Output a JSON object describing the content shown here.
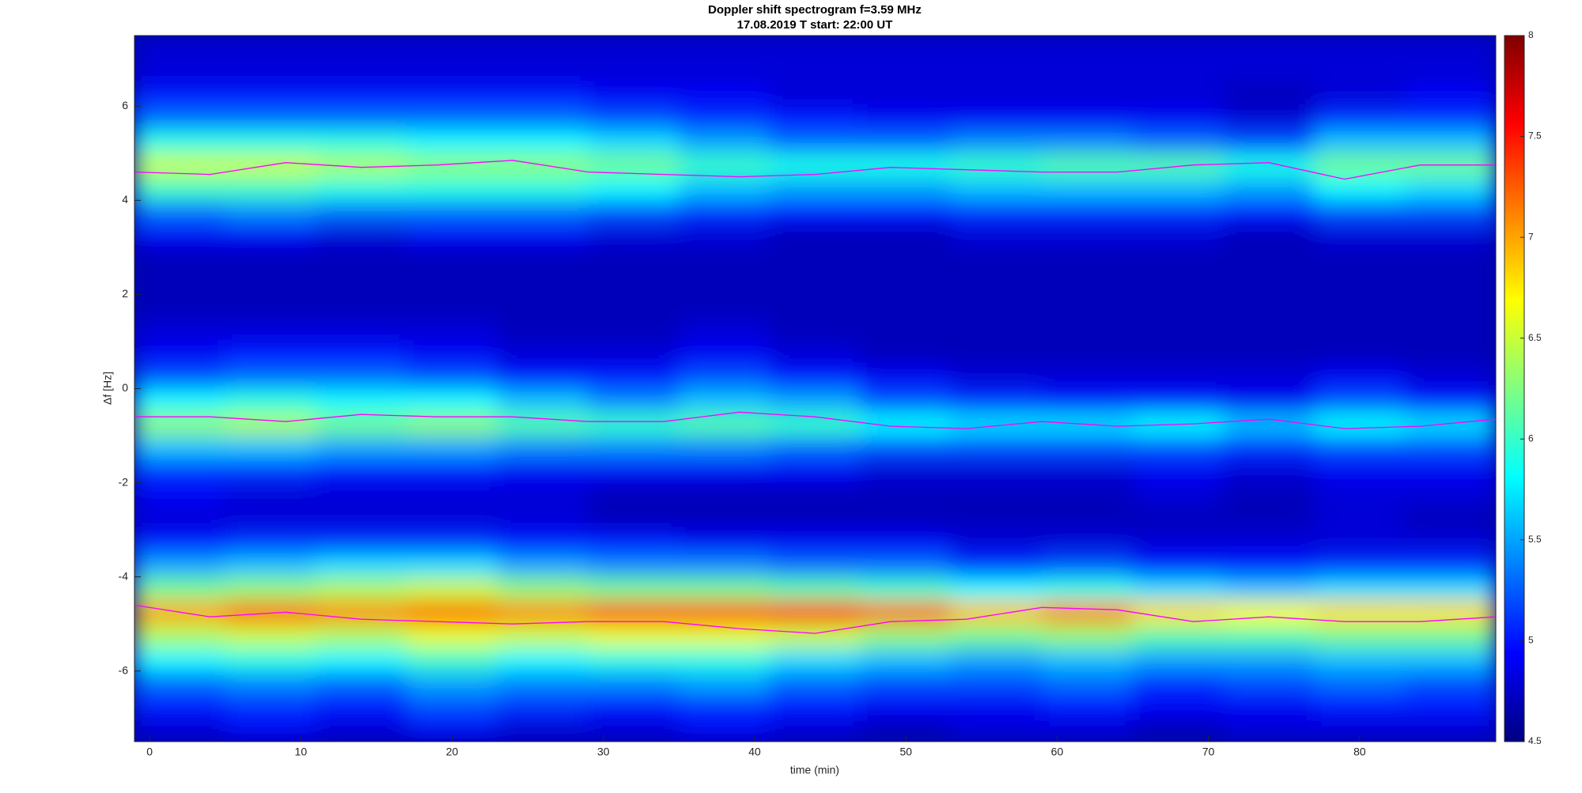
{
  "chart_data": {
    "type": "heatmap",
    "title": "Doppler shift spectrogram f=3.59 MHz",
    "subtitle": "17.08.2019   T start: 22:00 UT",
    "xlabel": "time (min)",
    "ylabel": "Δf [Hz]",
    "xlim": [
      -1,
      89
    ],
    "xticks": [
      0,
      10,
      20,
      30,
      40,
      50,
      60,
      70,
      80
    ],
    "ylim": [
      -7.5,
      7.5
    ],
    "yticks": [
      -6,
      -4,
      -2,
      0,
      2,
      4,
      6
    ],
    "clim": [
      4.5,
      8
    ],
    "cticks": [
      4.5,
      5,
      5.5,
      6,
      6.5,
      7,
      7.5,
      8
    ],
    "colormap": "jet",
    "x": [
      2,
      8,
      14,
      20,
      26,
      32,
      38,
      44,
      50,
      56,
      62,
      68,
      74,
      80,
      86
    ],
    "y": [
      -7.25,
      -6.75,
      -6.25,
      -5.75,
      -5.25,
      -4.75,
      -4.25,
      -3.75,
      -3.25,
      -2.75,
      -2.25,
      -1.75,
      -1.25,
      -0.75,
      -0.25,
      0.25,
      0.75,
      1.25,
      1.75,
      2.25,
      2.75,
      3.25,
      3.75,
      4.25,
      4.75,
      5.25,
      5.75,
      6.25,
      6.75,
      7.25
    ],
    "z": [
      [
        4.8,
        4.9,
        4.8,
        4.9,
        4.8,
        4.8,
        4.9,
        4.8,
        4.7,
        4.8,
        4.8,
        4.7,
        4.8,
        4.8,
        4.8
      ],
      [
        5.0,
        5.1,
        5.0,
        5.2,
        5.1,
        5.0,
        5.1,
        5.0,
        4.9,
        4.9,
        5.0,
        4.9,
        4.9,
        5.0,
        5.0
      ],
      [
        5.3,
        5.4,
        5.3,
        5.5,
        5.4,
        5.4,
        5.5,
        5.3,
        5.2,
        5.2,
        5.3,
        5.1,
        5.2,
        5.3,
        5.2
      ],
      [
        5.8,
        5.9,
        5.8,
        6.0,
        5.8,
        5.9,
        5.9,
        5.7,
        5.6,
        5.5,
        5.6,
        5.5,
        5.5,
        5.6,
        5.6
      ],
      [
        6.4,
        6.5,
        6.4,
        6.6,
        6.5,
        6.6,
        6.6,
        6.5,
        6.3,
        6.2,
        6.3,
        6.1,
        6.1,
        6.2,
        6.2
      ],
      [
        7.0,
        7.2,
        7.1,
        7.2,
        7.1,
        7.3,
        7.3,
        7.4,
        7.2,
        6.9,
        7.1,
        6.8,
        6.7,
        6.8,
        6.8
      ],
      [
        6.2,
        6.3,
        6.4,
        6.5,
        6.3,
        6.2,
        6.2,
        6.1,
        6.0,
        5.8,
        5.9,
        5.7,
        5.6,
        5.7,
        5.7
      ],
      [
        5.5,
        5.6,
        5.7,
        5.7,
        5.5,
        5.4,
        5.4,
        5.3,
        5.3,
        5.1,
        5.2,
        5.0,
        5.0,
        5.1,
        5.1
      ],
      [
        5.0,
        5.1,
        5.1,
        5.1,
        5.0,
        5.0,
        4.9,
        4.9,
        4.9,
        4.8,
        4.8,
        4.8,
        4.8,
        4.8,
        4.8
      ],
      [
        4.8,
        4.8,
        4.8,
        4.8,
        4.8,
        4.7,
        4.7,
        4.7,
        4.7,
        4.7,
        4.7,
        4.7,
        4.7,
        4.8,
        4.7
      ],
      [
        4.9,
        4.8,
        4.8,
        4.8,
        4.8,
        4.7,
        4.7,
        4.7,
        4.7,
        4.7,
        4.7,
        4.8,
        4.7,
        4.8,
        4.8
      ],
      [
        5.1,
        5.1,
        5.0,
        5.0,
        4.9,
        4.9,
        4.9,
        4.9,
        4.8,
        4.8,
        4.8,
        4.9,
        4.8,
        4.9,
        4.9
      ],
      [
        5.6,
        5.6,
        5.5,
        5.5,
        5.4,
        5.4,
        5.4,
        5.3,
        5.2,
        5.2,
        5.2,
        5.2,
        5.1,
        5.2,
        5.2
      ],
      [
        6.3,
        6.4,
        6.2,
        6.3,
        6.1,
        6.0,
        6.1,
        6.0,
        5.8,
        5.7,
        5.7,
        5.8,
        5.6,
        5.8,
        5.7
      ],
      [
        5.8,
        5.9,
        5.8,
        5.8,
        5.6,
        5.4,
        5.6,
        5.5,
        5.2,
        5.1,
        5.0,
        5.0,
        4.9,
        5.2,
        5.0
      ],
      [
        5.2,
        5.3,
        5.3,
        5.2,
        5.0,
        5.0,
        5.2,
        5.0,
        4.9,
        4.8,
        4.8,
        4.8,
        4.8,
        4.9,
        4.8
      ],
      [
        4.9,
        5.0,
        5.0,
        4.9,
        4.8,
        4.8,
        4.9,
        4.8,
        4.7,
        4.7,
        4.7,
        4.7,
        4.7,
        4.7,
        4.7
      ],
      [
        4.8,
        4.8,
        4.8,
        4.8,
        4.7,
        4.7,
        4.8,
        4.7,
        4.7,
        4.7,
        4.7,
        4.7,
        4.7,
        4.7,
        4.7
      ],
      [
        4.7,
        4.7,
        4.7,
        4.7,
        4.7,
        4.7,
        4.7,
        4.7,
        4.7,
        4.7,
        4.7,
        4.7,
        4.7,
        4.7,
        4.7
      ],
      [
        4.7,
        4.7,
        4.7,
        4.7,
        4.7,
        4.7,
        4.7,
        4.7,
        4.7,
        4.7,
        4.7,
        4.7,
        4.7,
        4.7,
        4.7
      ],
      [
        4.7,
        4.7,
        4.7,
        4.7,
        4.7,
        4.7,
        4.7,
        4.7,
        4.7,
        4.7,
        4.7,
        4.7,
        4.7,
        4.7,
        4.7
      ],
      [
        4.9,
        4.9,
        4.8,
        4.9,
        4.9,
        4.8,
        4.8,
        4.7,
        4.7,
        4.8,
        4.8,
        4.8,
        4.7,
        4.8,
        4.8
      ],
      [
        5.3,
        5.4,
        5.3,
        5.3,
        5.3,
        5.2,
        5.1,
        5.0,
        5.0,
        5.1,
        5.1,
        5.1,
        5.0,
        5.2,
        5.2
      ],
      [
        6.0,
        6.0,
        5.9,
        5.9,
        5.9,
        5.8,
        5.6,
        5.5,
        5.5,
        5.6,
        5.6,
        5.6,
        5.5,
        5.8,
        5.7
      ],
      [
        6.5,
        6.5,
        6.4,
        6.3,
        6.3,
        6.2,
        6.0,
        5.9,
        5.9,
        6.0,
        6.1,
        6.1,
        5.9,
        6.2,
        6.2
      ],
      [
        5.9,
        5.9,
        5.9,
        5.8,
        5.8,
        5.7,
        5.5,
        5.3,
        5.3,
        5.4,
        5.4,
        5.3,
        5.2,
        5.6,
        5.6
      ],
      [
        5.3,
        5.3,
        5.3,
        5.3,
        5.3,
        5.2,
        5.1,
        5.0,
        4.9,
        4.9,
        4.9,
        4.9,
        4.8,
        5.1,
        5.1
      ],
      [
        5.0,
        5.0,
        5.0,
        5.0,
        5.0,
        4.9,
        4.9,
        4.8,
        4.8,
        4.8,
        4.8,
        4.8,
        4.7,
        4.8,
        4.9
      ],
      [
        4.8,
        4.8,
        4.8,
        4.8,
        4.8,
        4.8,
        4.8,
        4.8,
        4.8,
        4.8,
        4.8,
        4.8,
        4.8,
        4.8,
        4.8
      ],
      [
        4.8,
        4.8,
        4.8,
        4.8,
        4.8,
        4.8,
        4.8,
        4.8,
        4.8,
        4.8,
        4.8,
        4.8,
        4.8,
        4.8,
        4.8
      ]
    ],
    "trace_x": [
      -1,
      4,
      9,
      14,
      19,
      24,
      29,
      34,
      39,
      44,
      49,
      54,
      59,
      64,
      69,
      74,
      79,
      84,
      89
    ],
    "traces": [
      {
        "color": "#ff00ff",
        "values": [
          4.6,
          4.55,
          4.8,
          4.7,
          4.75,
          4.85,
          4.6,
          4.55,
          4.5,
          4.55,
          4.7,
          4.65,
          4.6,
          4.6,
          4.75,
          4.8,
          4.45,
          4.75,
          4.75
        ]
      },
      {
        "color": "#ff00ff",
        "values": [
          -0.6,
          -0.6,
          -0.7,
          -0.55,
          -0.6,
          -0.6,
          -0.7,
          -0.7,
          -0.5,
          -0.6,
          -0.8,
          -0.85,
          -0.7,
          -0.8,
          -0.75,
          -0.65,
          -0.85,
          -0.8,
          -0.65
        ]
      },
      {
        "color": "#ff00ff",
        "values": [
          -4.6,
          -4.85,
          -4.75,
          -4.9,
          -4.95,
          -5.0,
          -4.95,
          -4.95,
          -5.1,
          -5.2,
          -4.95,
          -4.9,
          -4.65,
          -4.7,
          -4.95,
          -4.85,
          -4.95,
          -4.95,
          -4.85
        ]
      }
    ]
  }
}
